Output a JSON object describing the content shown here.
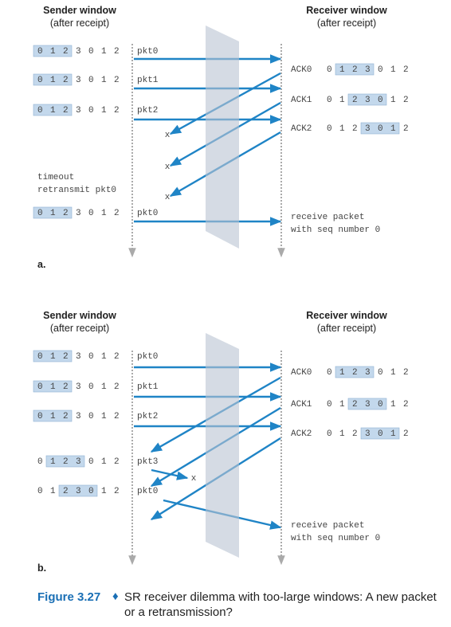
{
  "panels": [
    {
      "sender_header": {
        "title": "Sender window",
        "subtitle": "(after receipt)"
      },
      "receiver_header": {
        "title": "Receiver window",
        "subtitle": "(after receipt)"
      },
      "sender_rows": [
        [
          "0",
          "1",
          "2",
          "3",
          "0",
          "1",
          "2"
        ],
        [
          "0",
          "1",
          "2",
          "3",
          "0",
          "1",
          "2"
        ],
        [
          "0",
          "1",
          "2",
          "3",
          "0",
          "1",
          "2"
        ],
        [
          "0",
          "1",
          "2",
          "3",
          "0",
          "1",
          "2"
        ]
      ],
      "packets": [
        "pkt0",
        "pkt1",
        "pkt2",
        "pkt0"
      ],
      "acks": [
        {
          "label": "ACK0",
          "window": [
            "0",
            "1",
            "2",
            "3",
            "0",
            "1",
            "2"
          ]
        },
        {
          "label": "ACK1",
          "window": [
            "0",
            "1",
            "2",
            "3",
            "0",
            "1",
            "2"
          ]
        },
        {
          "label": "ACK2",
          "window": [
            "0",
            "1",
            "2",
            "3",
            "0",
            "1",
            "2"
          ]
        }
      ],
      "lost_marks": [
        "x",
        "x",
        "x"
      ],
      "timeout": [
        "timeout",
        "retransmit pkt0"
      ],
      "receive_note": [
        "receive packet",
        "with seq number 0"
      ],
      "label": "a."
    },
    {
      "sender_header": {
        "title": "Sender window",
        "subtitle": "(after receipt)"
      },
      "receiver_header": {
        "title": "Receiver window",
        "subtitle": "(after receipt)"
      },
      "sender_rows": [
        [
          "0",
          "1",
          "2",
          "3",
          "0",
          "1",
          "2"
        ],
        [
          "0",
          "1",
          "2",
          "3",
          "0",
          "1",
          "2"
        ],
        [
          "0",
          "1",
          "2",
          "3",
          "0",
          "1",
          "2"
        ],
        [
          "0",
          "1",
          "2",
          "3",
          "0",
          "1",
          "2"
        ],
        [
          "0",
          "1",
          "2",
          "3",
          "0",
          "1",
          "2"
        ]
      ],
      "packets": [
        "pkt0",
        "pkt1",
        "pkt2",
        "pkt3",
        "pkt0"
      ],
      "acks": [
        {
          "label": "ACK0",
          "window": [
            "0",
            "1",
            "2",
            "3",
            "0",
            "1",
            "2"
          ]
        },
        {
          "label": "ACK1",
          "window": [
            "0",
            "1",
            "2",
            "3",
            "0",
            "1",
            "2"
          ]
        },
        {
          "label": "ACK2",
          "window": [
            "0",
            "1",
            "2",
            "3",
            "0",
            "1",
            "2"
          ]
        }
      ],
      "lost_marks": [
        "x"
      ],
      "receive_note": [
        "receive packet",
        "with seq number 0"
      ],
      "label": "b."
    }
  ],
  "caption": {
    "figure": "Figure 3.27",
    "separator": "♦",
    "lines": [
      "SR receiver dilemma with too-large windows: A new packet",
      "or a retransmission?"
    ]
  }
}
